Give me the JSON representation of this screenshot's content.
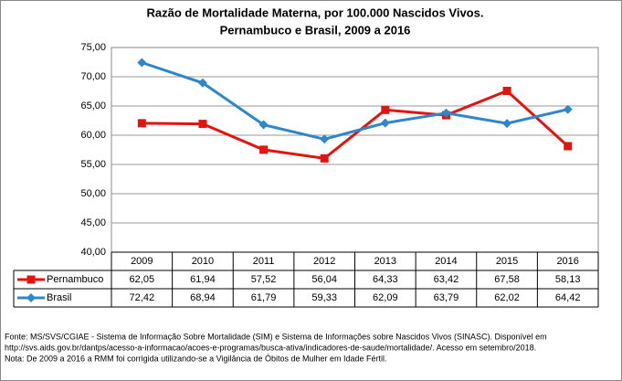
{
  "chart_data": {
    "type": "line",
    "title": [
      "Razão de Mortalidade Materna, por 100.000 Nascidos Vivos.",
      "Pernambuco e Brasil, 2009 a 2016"
    ],
    "categories": [
      "2009",
      "2010",
      "2011",
      "2012",
      "2013",
      "2014",
      "2015",
      "2016"
    ],
    "series": [
      {
        "name": "Pernambuco",
        "color": "#e3140f",
        "marker": "square",
        "values": [
          62.05,
          61.94,
          57.52,
          56.04,
          64.33,
          63.42,
          67.58,
          58.13
        ],
        "value_labels": [
          "62,05",
          "61,94",
          "57,52",
          "56,04",
          "64,33",
          "63,42",
          "67,58",
          "58,13"
        ]
      },
      {
        "name": "Brasil",
        "color": "#2f86c9",
        "marker": "diamond",
        "values": [
          72.42,
          68.94,
          61.79,
          59.33,
          62.09,
          63.79,
          62.02,
          64.42
        ],
        "value_labels": [
          "72,42",
          "68,94",
          "61,79",
          "59,33",
          "62,09",
          "63,79",
          "62,02",
          "64,42"
        ]
      }
    ],
    "ylim": [
      40,
      75
    ],
    "yticks": [
      {
        "value": 40,
        "label": "40,00"
      },
      {
        "value": 45,
        "label": "45,00"
      },
      {
        "value": 50,
        "label": "50,00"
      },
      {
        "value": 55,
        "label": "55,00"
      },
      {
        "value": 60,
        "label": "60,00"
      },
      {
        "value": 65,
        "label": "65,00"
      },
      {
        "value": 70,
        "label": "70,00"
      },
      {
        "value": 75,
        "label": "75,00"
      }
    ],
    "grid": true,
    "notes": [
      "Fonte: MS/SVS/CGIAE - Sistema de Informação Sobre Mortalidade (SIM) e Sistema de Informações sobre Nascidos Vivos (SINASC). Disponível em",
      "http://svs.aids.gov.br/dantps/acesso-a-informacao/acoes-e-programas/busca-ativa/indicadores-de-saude/mortalidade/. Acesso em setembro/2018.",
      "Nota: De 2009 a 2016 a RMM foi corrigida utilizando-se a Vigilância de Óbitos de Mulher em Idade Fértil."
    ]
  }
}
